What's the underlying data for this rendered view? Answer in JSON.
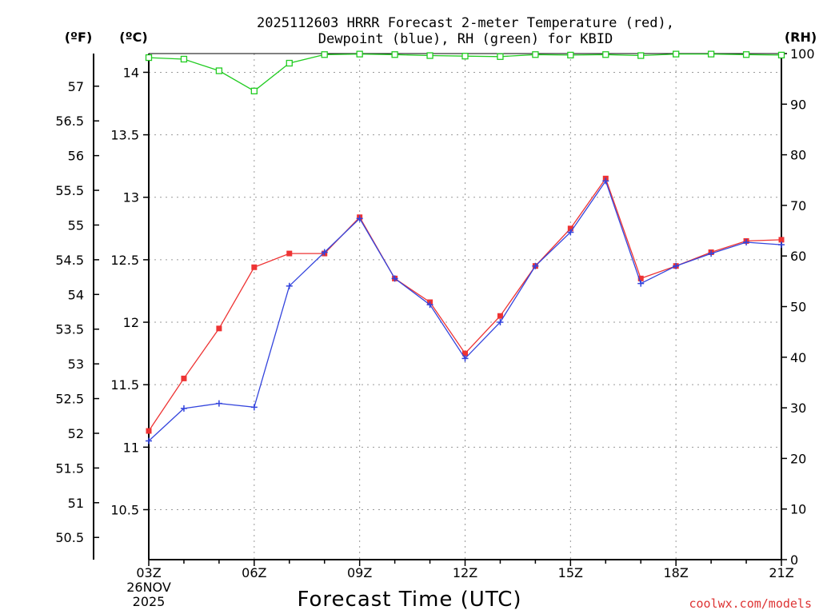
{
  "chart_data": {
    "type": "line",
    "title": "2025112603 HRRR Forecast 2-meter Temperature (red),",
    "subtitle": "Dewpoint (blue), RH (green) for KBID",
    "xlabel": "Forecast Time (UTC)",
    "y_unit_left_outer": "(ºF)",
    "y_unit_left_inner": "(ºC)",
    "y_unit_right": "(RH)",
    "credit": "coolwx.com/models",
    "colors": {
      "temperature": "#ee3333",
      "dewpoint": "#3344dd",
      "rh": "#22cc22",
      "credit": "#dd3333"
    },
    "grid": true,
    "x": [
      "03Z",
      "04Z",
      "05Z",
      "06Z",
      "07Z",
      "08Z",
      "09Z",
      "10Z",
      "11Z",
      "12Z",
      "13Z",
      "14Z",
      "15Z",
      "16Z",
      "17Z",
      "18Z",
      "19Z",
      "20Z",
      "21Z"
    ],
    "x_ticks": [
      {
        "label": "03Z",
        "index": 0,
        "date_line1": "26NOV",
        "date_line2": "2025"
      },
      {
        "label": "06Z",
        "index": 3
      },
      {
        "label": "09Z",
        "index": 6
      },
      {
        "label": "12Z",
        "index": 9
      },
      {
        "label": "15Z",
        "index": 12
      },
      {
        "label": "18Z",
        "index": 15
      },
      {
        "label": "21Z",
        "index": 18
      }
    ],
    "celsius_axis": {
      "range": [
        10.1,
        14.15
      ],
      "ticks": [
        "10.5",
        "11",
        "11.5",
        "12",
        "12.5",
        "13",
        "13.5",
        "14"
      ]
    },
    "fahrenheit_axis": {
      "ticks": [
        "50.5",
        "51",
        "51.5",
        "52",
        "52.5",
        "53",
        "53.5",
        "54",
        "54.5",
        "55",
        "55.5",
        "56",
        "56.5",
        "57"
      ]
    },
    "rh_axis": {
      "range": [
        0,
        100
      ],
      "ticks": [
        "0",
        "10",
        "20",
        "30",
        "40",
        "50",
        "60",
        "70",
        "80",
        "90",
        "100"
      ]
    },
    "series": [
      {
        "key": "temperature",
        "marker": "filled-square",
        "values": [
          11.13,
          11.55,
          11.95,
          12.44,
          12.55,
          12.55,
          12.84,
          12.35,
          12.16,
          11.75,
          12.05,
          12.45,
          12.75,
          13.15,
          12.35,
          12.45,
          12.56,
          12.65,
          12.66
        ]
      },
      {
        "key": "dewpoint",
        "marker": "plus",
        "values": [
          11.05,
          11.31,
          11.35,
          11.32,
          12.29,
          12.56,
          12.83,
          12.35,
          12.14,
          11.71,
          12.0,
          12.45,
          12.72,
          13.13,
          12.31,
          12.45,
          12.55,
          12.64,
          12.62
        ]
      },
      {
        "key": "rh",
        "marker": "open-square",
        "values": [
          99.2,
          98.9,
          96.6,
          92.6,
          98.1,
          99.8,
          99.9,
          99.8,
          99.6,
          99.5,
          99.4,
          99.8,
          99.7,
          99.8,
          99.6,
          99.9,
          99.9,
          99.8,
          99.7
        ]
      }
    ]
  }
}
